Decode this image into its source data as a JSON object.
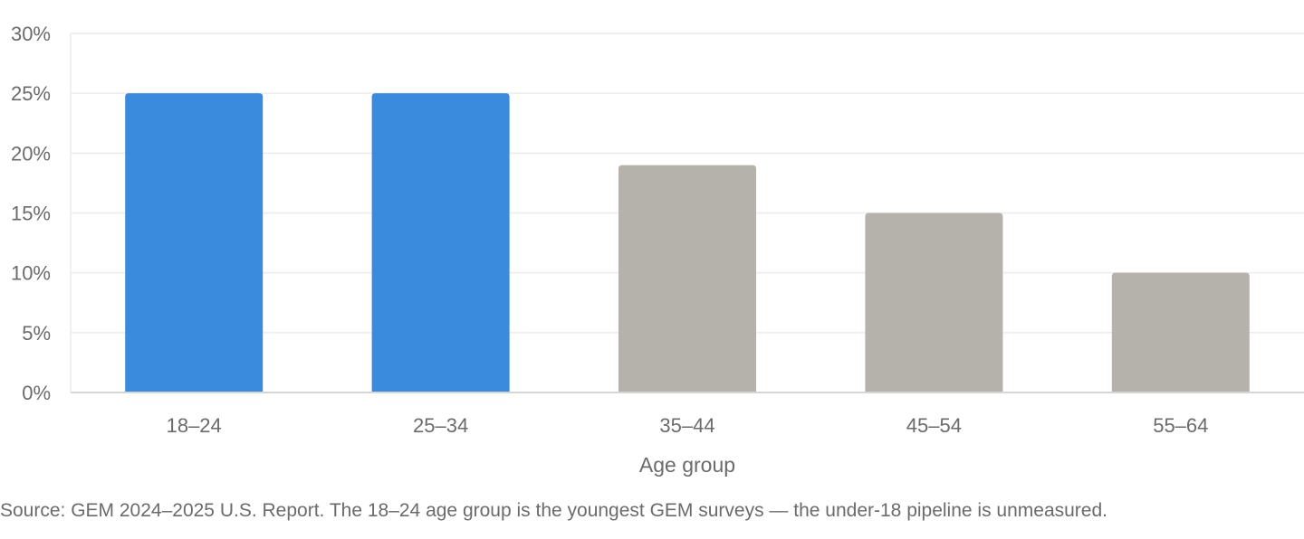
{
  "chart_data": {
    "type": "bar",
    "categories": [
      "18–24",
      "25–34",
      "35–44",
      "45–54",
      "55–64"
    ],
    "values": [
      25,
      25,
      19,
      15,
      10
    ],
    "highlighted": [
      true,
      true,
      false,
      false,
      false
    ],
    "title": "",
    "xlabel": "Age group",
    "ylabel": "",
    "ylim": [
      0,
      30
    ],
    "yticks": [
      0,
      5,
      10,
      15,
      20,
      25,
      30
    ],
    "ytick_labels": [
      "0%",
      "5%",
      "10%",
      "15%",
      "20%",
      "25%",
      "30%"
    ],
    "grid": true,
    "legend": "none"
  },
  "colors": {
    "highlight": "#3a8ade",
    "muted": "#b4b2ab",
    "grid": "#ececec",
    "axis": "#d6d6d6"
  },
  "source_note": "Source: GEM 2024–2025 U.S. Report. The 18–24 age group is the youngest GEM surveys — the under-18 pipeline is unmeasured."
}
